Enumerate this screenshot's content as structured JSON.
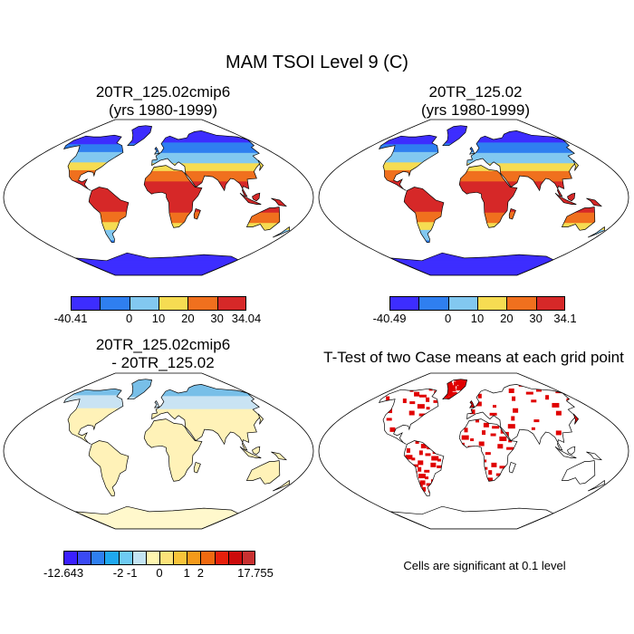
{
  "title": "MAM TSOI Level 9 (C)",
  "panels": [
    {
      "id": "case1",
      "title_line1": "20TR_125.02cmip6",
      "title_line2": "(yrs 1980-1999)",
      "colorbar": {
        "labels": [
          "-40.41",
          "0",
          "10",
          "20",
          "30",
          "34.04"
        ],
        "colors": [
          "#3d2dff",
          "#2f7ff0",
          "#82c8f0",
          "#f6dc52",
          "#f0701e",
          "#d62828"
        ]
      }
    },
    {
      "id": "case2",
      "title_line1": "20TR_125.02",
      "title_line2": "(yrs 1980-1999)",
      "colorbar": {
        "labels": [
          "-40.49",
          "0",
          "10",
          "20",
          "30",
          "34.1"
        ],
        "colors": [
          "#3d2dff",
          "#2f7ff0",
          "#82c8f0",
          "#f6dc52",
          "#f0701e",
          "#d62828"
        ]
      }
    },
    {
      "id": "diff",
      "title_line1": "20TR_125.02cmip6",
      "title_line2": "- 20TR_125.02",
      "colorbar": {
        "labels": [
          "-12.643",
          "-2",
          "-1",
          "0",
          "1",
          "2",
          "17.755"
        ],
        "colors": [
          "#3b1fff",
          "#3a4af5",
          "#2f7ff0",
          "#1fa8f0",
          "#6ecbf3",
          "#c3e4f3",
          "#fff6b0",
          "#fce37a",
          "#f8c43a",
          "#f49a1a",
          "#f06a10",
          "#e8200c",
          "#cc0b0b",
          "#c83030"
        ]
      }
    },
    {
      "id": "ttest",
      "title_line1": "T-Test of two Case means at each grid point",
      "note": "Cells are significant at 0.1 level"
    }
  ],
  "colors": {
    "significant": "#e00000",
    "coastline": "#000000"
  }
}
